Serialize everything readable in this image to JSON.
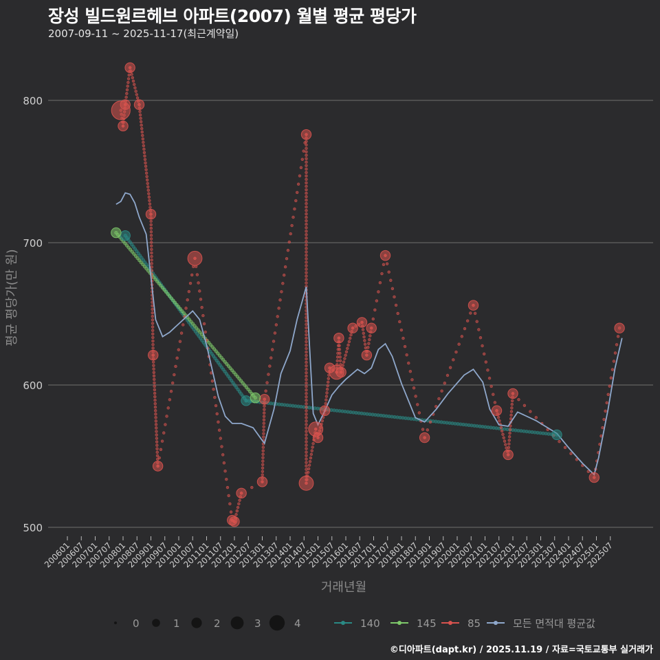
{
  "title": "장성 빌드원르헤브 아파트(2007) 월별 평균 평당가",
  "subtitle": "2007-09-11 ~ 2025-11-17(최근계약일)",
  "footer": "©디아파트(dapt.kr) / 2025.11.19 / 자료=국토교통부 실거래가",
  "colors": {
    "background": "#2b2b2d",
    "grid": "#5a5a5a",
    "s140": "#2a8a85",
    "s145": "#7ec96a",
    "s85": "#d9534f",
    "avg": "#8fa8cc",
    "size_legend": "#111111"
  },
  "chart_data": {
    "type": "scatter",
    "title": "장성 빌드원르헤브 아파트(2007) 월별 평균 평당가",
    "xlabel": "거래년월",
    "ylabel": "평균 평당가(만 원)",
    "ylim": [
      490,
      840
    ],
    "xlim": [
      2006.0,
      2026.0
    ],
    "y_ticks": [
      500,
      600,
      700,
      800
    ],
    "x_tick_labels": [
      "200601",
      "200607",
      "200701",
      "200707",
      "200801",
      "200807",
      "200901",
      "200907",
      "201001",
      "201007",
      "201101",
      "201107",
      "201201",
      "201207",
      "201301",
      "201307",
      "201401",
      "201407",
      "201501",
      "201507",
      "201601",
      "201607",
      "201701",
      "201707",
      "201801",
      "201807",
      "201901",
      "201907",
      "202001",
      "202007",
      "202101",
      "202107",
      "202201",
      "202207",
      "202301",
      "202307",
      "202401",
      "202407",
      "202501",
      "202507"
    ],
    "legend_size": {
      "labels": [
        "0",
        "1",
        "2",
        "3",
        "4"
      ]
    },
    "legend_series": [
      "140",
      "145",
      "85",
      "모든 면적대 평균값"
    ],
    "series": [
      {
        "name": "140",
        "color": "#2a8a85",
        "points": [
          {
            "x": 2008.08,
            "y": 705,
            "n": 1
          },
          {
            "x": 2012.42,
            "y": 589,
            "n": 1
          },
          {
            "x": 2023.58,
            "y": 565,
            "n": 1
          }
        ]
      },
      {
        "name": "145",
        "color": "#7ec96a",
        "points": [
          {
            "x": 2007.75,
            "y": 707,
            "n": 1
          },
          {
            "x": 2012.75,
            "y": 591,
            "n": 1
          }
        ]
      },
      {
        "name": "85",
        "color": "#d9534f",
        "points": [
          {
            "x": 2007.92,
            "y": 793,
            "n": 3
          },
          {
            "x": 2008.0,
            "y": 782,
            "n": 1
          },
          {
            "x": 2008.08,
            "y": 797,
            "n": 1
          },
          {
            "x": 2008.25,
            "y": 823,
            "n": 1
          },
          {
            "x": 2008.58,
            "y": 797,
            "n": 1
          },
          {
            "x": 2009.0,
            "y": 720,
            "n": 1
          },
          {
            "x": 2009.08,
            "y": 621,
            "n": 1
          },
          {
            "x": 2009.25,
            "y": 543,
            "n": 1
          },
          {
            "x": 2010.58,
            "y": 689,
            "n": 2
          },
          {
            "x": 2011.92,
            "y": 505,
            "n": 1
          },
          {
            "x": 2012.0,
            "y": 504,
            "n": 1
          },
          {
            "x": 2012.25,
            "y": 524,
            "n": 1
          },
          {
            "x": 2013.0,
            "y": 532,
            "n": 1
          },
          {
            "x": 2013.08,
            "y": 590,
            "n": 1
          },
          {
            "x": 2014.58,
            "y": 776,
            "n": 1
          },
          {
            "x": 2014.58,
            "y": 531,
            "n": 2
          },
          {
            "x": 2014.92,
            "y": 569,
            "n": 2
          },
          {
            "x": 2015.0,
            "y": 563,
            "n": 1
          },
          {
            "x": 2015.25,
            "y": 582,
            "n": 1
          },
          {
            "x": 2015.42,
            "y": 612,
            "n": 1
          },
          {
            "x": 2015.67,
            "y": 609,
            "n": 2
          },
          {
            "x": 2015.75,
            "y": 633,
            "n": 1
          },
          {
            "x": 2015.83,
            "y": 609,
            "n": 1
          },
          {
            "x": 2016.25,
            "y": 640,
            "n": 1
          },
          {
            "x": 2016.58,
            "y": 644,
            "n": 1
          },
          {
            "x": 2016.75,
            "y": 621,
            "n": 1
          },
          {
            "x": 2016.92,
            "y": 640,
            "n": 1
          },
          {
            "x": 2017.42,
            "y": 691,
            "n": 1
          },
          {
            "x": 2018.83,
            "y": 563,
            "n": 1
          },
          {
            "x": 2020.58,
            "y": 656,
            "n": 1
          },
          {
            "x": 2021.42,
            "y": 582,
            "n": 1
          },
          {
            "x": 2021.83,
            "y": 551,
            "n": 1
          },
          {
            "x": 2022.0,
            "y": 594,
            "n": 1
          },
          {
            "x": 2024.92,
            "y": 535,
            "n": 1
          },
          {
            "x": 2025.83,
            "y": 640,
            "n": 1
          }
        ]
      },
      {
        "name": "모든 면적대 평균값",
        "color": "#8fa8cc",
        "points": [
          {
            "x": 2007.75,
            "y": 727
          },
          {
            "x": 2007.92,
            "y": 729
          },
          {
            "x": 2008.08,
            "y": 735
          },
          {
            "x": 2008.25,
            "y": 734
          },
          {
            "x": 2008.42,
            "y": 728
          },
          {
            "x": 2008.58,
            "y": 718
          },
          {
            "x": 2008.83,
            "y": 706
          },
          {
            "x": 2009.0,
            "y": 676
          },
          {
            "x": 2009.17,
            "y": 646
          },
          {
            "x": 2009.42,
            "y": 634
          },
          {
            "x": 2009.67,
            "y": 637
          },
          {
            "x": 2010.0,
            "y": 643
          },
          {
            "x": 2010.5,
            "y": 652
          },
          {
            "x": 2010.75,
            "y": 646
          },
          {
            "x": 2011.0,
            "y": 628
          },
          {
            "x": 2011.42,
            "y": 592
          },
          {
            "x": 2011.67,
            "y": 578
          },
          {
            "x": 2011.92,
            "y": 573
          },
          {
            "x": 2012.25,
            "y": 573
          },
          {
            "x": 2012.67,
            "y": 570
          },
          {
            "x": 2013.0,
            "y": 561
          },
          {
            "x": 2013.08,
            "y": 559
          },
          {
            "x": 2013.42,
            "y": 583
          },
          {
            "x": 2013.67,
            "y": 608
          },
          {
            "x": 2014.0,
            "y": 624
          },
          {
            "x": 2014.25,
            "y": 646
          },
          {
            "x": 2014.58,
            "y": 669
          },
          {
            "x": 2014.83,
            "y": 580
          },
          {
            "x": 2015.0,
            "y": 572
          },
          {
            "x": 2015.25,
            "y": 582
          },
          {
            "x": 2015.5,
            "y": 593
          },
          {
            "x": 2015.75,
            "y": 599
          },
          {
            "x": 2016.0,
            "y": 604
          },
          {
            "x": 2016.42,
            "y": 611
          },
          {
            "x": 2016.67,
            "y": 608
          },
          {
            "x": 2016.92,
            "y": 612
          },
          {
            "x": 2017.17,
            "y": 625
          },
          {
            "x": 2017.42,
            "y": 629
          },
          {
            "x": 2017.67,
            "y": 620
          },
          {
            "x": 2018.0,
            "y": 601
          },
          {
            "x": 2018.5,
            "y": 577
          },
          {
            "x": 2018.83,
            "y": 574
          },
          {
            "x": 2019.25,
            "y": 583
          },
          {
            "x": 2019.67,
            "y": 594
          },
          {
            "x": 2020.25,
            "y": 607
          },
          {
            "x": 2020.58,
            "y": 611
          },
          {
            "x": 2020.92,
            "y": 602
          },
          {
            "x": 2021.17,
            "y": 583
          },
          {
            "x": 2021.5,
            "y": 572
          },
          {
            "x": 2021.83,
            "y": 571
          },
          {
            "x": 2022.17,
            "y": 581
          },
          {
            "x": 2022.83,
            "y": 575
          },
          {
            "x": 2023.58,
            "y": 566
          },
          {
            "x": 2024.0,
            "y": 556
          },
          {
            "x": 2024.5,
            "y": 545
          },
          {
            "x": 2024.92,
            "y": 537
          },
          {
            "x": 2025.08,
            "y": 549
          },
          {
            "x": 2025.42,
            "y": 583
          },
          {
            "x": 2025.67,
            "y": 612
          },
          {
            "x": 2025.92,
            "y": 633
          }
        ]
      }
    ]
  }
}
